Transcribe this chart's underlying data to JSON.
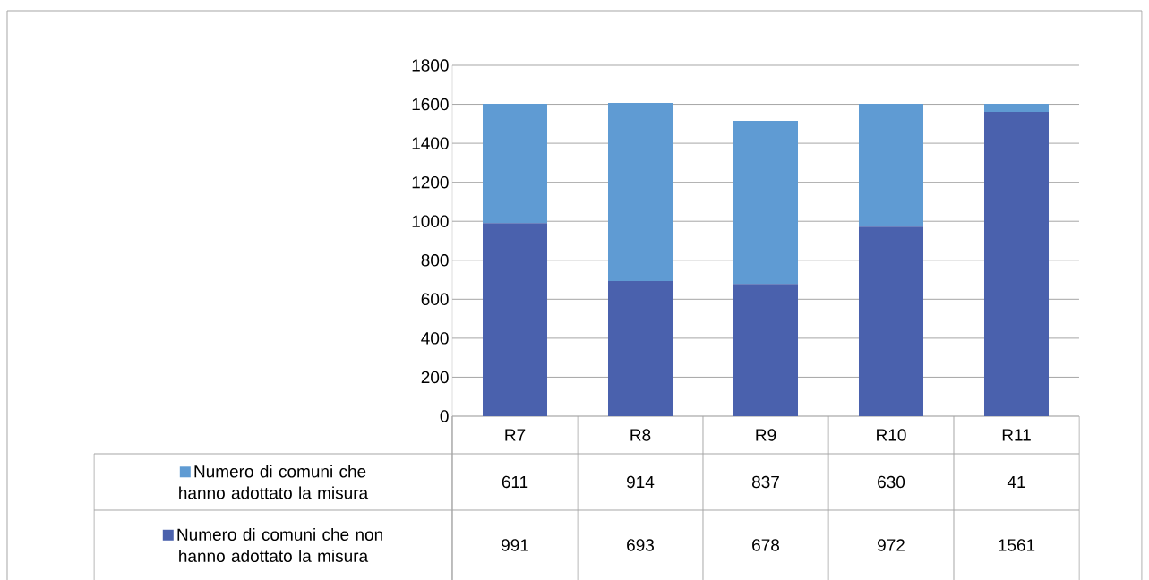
{
  "chart_data": {
    "type": "bar",
    "stacked": true,
    "categories": [
      "R7",
      "R8",
      "R9",
      "R10",
      "R11"
    ],
    "series": [
      {
        "name": "Numero di comuni che non hanno adottato la misura",
        "color": "#4a61ad",
        "values": [
          991,
          693,
          678,
          972,
          1561
        ]
      },
      {
        "name": "Numero di comuni che hanno adottato la misura",
        "color": "#5f9bd3",
        "values": [
          611,
          914,
          837,
          630,
          41
        ]
      }
    ],
    "ylim": [
      0,
      1800
    ],
    "yticks": [
      0,
      200,
      400,
      600,
      800,
      1000,
      1200,
      1400,
      1600,
      1800
    ],
    "grid": "y",
    "legend": "bottom",
    "data_labels": true
  }
}
